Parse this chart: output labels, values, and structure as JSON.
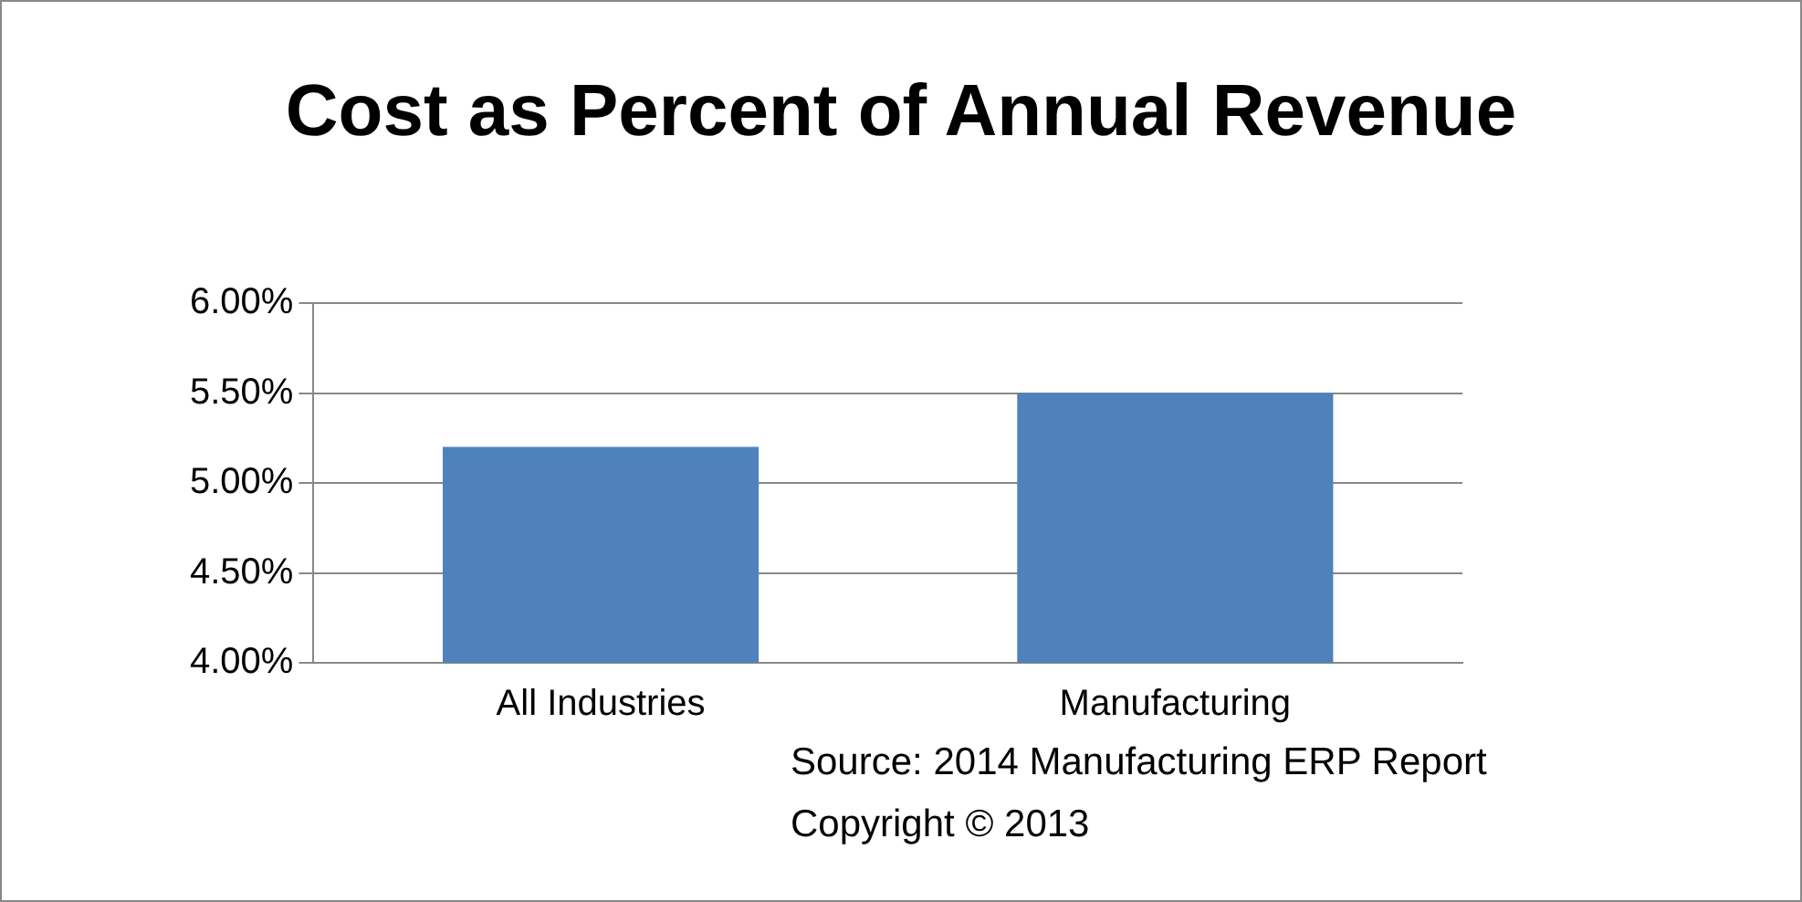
{
  "chart_data": {
    "type": "bar",
    "title": "Cost as Percent of Annual Revenue",
    "categories": [
      "All Industries",
      "Manufacturing"
    ],
    "values": [
      5.2,
      5.5
    ],
    "color": "#4f81bd",
    "ylim": [
      4,
      6
    ],
    "yticks": [
      {
        "value": 4,
        "label": "4.00%"
      },
      {
        "value": 4.5,
        "label": "4.50%"
      },
      {
        "value": 5,
        "label": "5.00%"
      },
      {
        "value": 5.5,
        "label": "5.50%"
      },
      {
        "value": 6,
        "label": "6.00%"
      }
    ],
    "grid": "y",
    "annotations": [
      "Source: 2014 Manufacturing ERP Report",
      "Copyright © 2013"
    ]
  }
}
